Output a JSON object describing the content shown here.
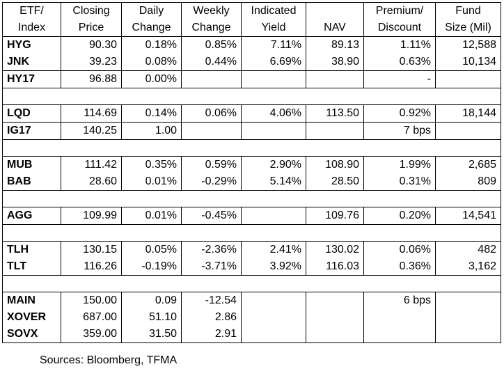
{
  "headers": [
    [
      "ETF/",
      "Index"
    ],
    [
      "Closing",
      "Price"
    ],
    [
      "Daily",
      "Change"
    ],
    [
      "Weekly",
      "Change"
    ],
    [
      "Indicated",
      "Yield"
    ],
    [
      "",
      "NAV"
    ],
    [
      "Premium/",
      "Discount"
    ],
    [
      "Fund",
      "Size (Mil)"
    ]
  ],
  "groups": [
    [
      [
        "HYG",
        "90.30",
        "0.18%",
        "0.85%",
        "7.11%",
        "89.13",
        "1.11%",
        "12,588"
      ],
      [
        "JNK",
        "39.23",
        "0.08%",
        "0.44%",
        "6.69%",
        "38.90",
        "0.63%",
        "10,134"
      ]
    ],
    [
      [
        "HY17",
        "96.88",
        "0.00%",
        "",
        "",
        "",
        "-",
        ""
      ]
    ],
    [
      [
        "LQD",
        "114.69",
        "0.14%",
        "0.06%",
        "4.06%",
        "113.50",
        "0.92%",
        "18,144"
      ]
    ],
    [
      [
        "IG17",
        "140.25",
        "1.00",
        "",
        "",
        "",
        "7 bps",
        ""
      ]
    ],
    [
      [
        "MUB",
        "111.42",
        "0.35%",
        "0.59%",
        "2.90%",
        "108.90",
        "1.99%",
        "2,685"
      ],
      [
        "BAB",
        "28.60",
        "0.01%",
        "-0.29%",
        "5.14%",
        "28.50",
        "0.31%",
        "809"
      ]
    ],
    [
      [
        "AGG",
        "109.99",
        "0.01%",
        "-0.45%",
        "",
        "109.76",
        "0.20%",
        "14,541"
      ]
    ],
    [
      [
        "TLH",
        "130.15",
        "0.05%",
        "-2.36%",
        "2.41%",
        "130.02",
        "0.06%",
        "482"
      ],
      [
        "TLT",
        "116.26",
        "-0.19%",
        "-3.71%",
        "3.92%",
        "116.03",
        "0.36%",
        "3,162"
      ]
    ],
    [
      [
        "MAIN",
        "150.00",
        "0.09",
        "-12.54",
        "",
        "",
        "6 bps",
        ""
      ],
      [
        "XOVER",
        "687.00",
        "51.10",
        "2.86",
        "",
        "",
        "",
        ""
      ],
      [
        "SOVX",
        "359.00",
        "31.50",
        "2.91",
        "",
        "",
        "",
        ""
      ]
    ]
  ],
  "spacer_after_groups": [
    1,
    3,
    4,
    5,
    6
  ],
  "source": "Sources: Bloomberg, TFMA"
}
